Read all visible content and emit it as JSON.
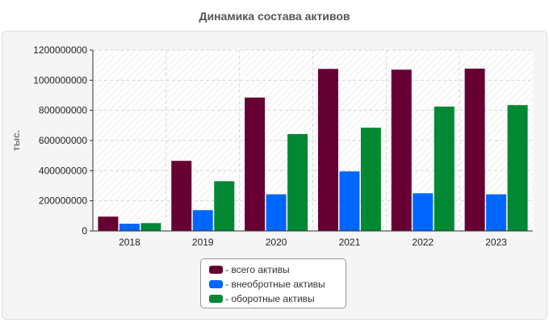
{
  "title": "Динамика состава активов",
  "chart_data": {
    "type": "bar",
    "categories": [
      "2018",
      "2019",
      "2020",
      "2021",
      "2022",
      "2023"
    ],
    "series": [
      {
        "name": "всего активы",
        "color": "#660033",
        "values": [
          95000000,
          465000000,
          885000000,
          1075000000,
          1070000000,
          1077000000
        ]
      },
      {
        "name": "внеобротные активы",
        "color": "#0066ff",
        "values": [
          48000000,
          138000000,
          243000000,
          395000000,
          250000000,
          243000000
        ]
      },
      {
        "name": "оборотные активы",
        "color": "#008833",
        "values": [
          52000000,
          330000000,
          643000000,
          685000000,
          825000000,
          835000000
        ]
      }
    ],
    "ylabel": "тыс.",
    "ylim": [
      0,
      1200000000
    ],
    "yticks": [
      0,
      200000000,
      400000000,
      600000000,
      800000000,
      1000000000,
      1200000000
    ],
    "grid": true,
    "legend_position": "bottom-center"
  },
  "legend": {
    "items": [
      {
        "label": "- всего активы",
        "color": "#660033"
      },
      {
        "label": "- внеобротные активы",
        "color": "#0066ff"
      },
      {
        "label": "- оборотные активы",
        "color": "#008833"
      }
    ]
  }
}
